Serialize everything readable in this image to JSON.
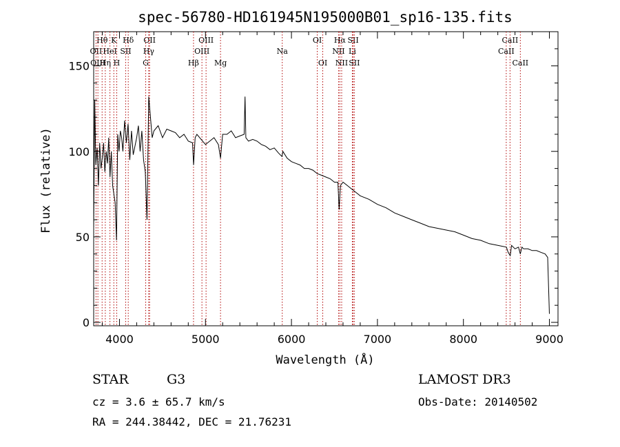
{
  "title": "spec-56780-HD161945N195000B01_sp16-135.fits",
  "chart_data": {
    "type": "line",
    "title": "spec-56780-HD161945N195000B01_sp16-135.fits",
    "xlabel": "Wavelength (Å)",
    "ylabel": "Flux (relative)",
    "xlim": [
      3700,
      9100
    ],
    "ylim": [
      -2,
      170
    ],
    "x_ticks": [
      4000,
      5000,
      6000,
      7000,
      8000,
      9000
    ],
    "y_ticks": [
      0,
      50,
      100,
      150
    ],
    "x_tick_labels": [
      "4000",
      "5000",
      "6000",
      "7000",
      "8000",
      "9000"
    ],
    "y_tick_labels": [
      "0",
      "50",
      "100",
      "150"
    ],
    "series": [
      {
        "name": "spectrum",
        "x": [
          3700,
          3712,
          3725,
          3740,
          3755,
          3770,
          3785,
          3800,
          3815,
          3830,
          3845,
          3860,
          3875,
          3890,
          3905,
          3920,
          3935,
          3950,
          3965,
          3980,
          3995,
          4010,
          4025,
          4040,
          4060,
          4080,
          4100,
          4120,
          4140,
          4160,
          4180,
          4200,
          4220,
          4240,
          4260,
          4280,
          4300,
          4320,
          4340,
          4360,
          4380,
          4400,
          4450,
          4500,
          4550,
          4600,
          4650,
          4700,
          4750,
          4800,
          4850,
          4862,
          4880,
          4900,
          4950,
          5000,
          5050,
          5100,
          5150,
          5175,
          5200,
          5250,
          5300,
          5350,
          5400,
          5450,
          5460,
          5470,
          5500,
          5550,
          5600,
          5650,
          5700,
          5750,
          5800,
          5850,
          5890,
          5900,
          5950,
          6000,
          6050,
          6100,
          6150,
          6200,
          6250,
          6300,
          6350,
          6400,
          6450,
          6500,
          6540,
          6555,
          6563,
          6570,
          6600,
          6650,
          6700,
          6750,
          6800,
          6900,
          7000,
          7100,
          7200,
          7300,
          7400,
          7500,
          7600,
          7700,
          7800,
          7900,
          8000,
          8100,
          8200,
          8300,
          8400,
          8500,
          8520,
          8545,
          8560,
          8600,
          8640,
          8662,
          8680,
          8700,
          8750,
          8800,
          8850,
          8900,
          8950,
          8980,
          9000
        ],
        "y": [
          55,
          130,
          92,
          102,
          80,
          105,
          90,
          96,
          105,
          88,
          100,
          93,
          108,
          85,
          100,
          80,
          75,
          70,
          48,
          110,
          100,
          112,
          108,
          100,
          118,
          105,
          116,
          95,
          112,
          98,
          103,
          108,
          115,
          100,
          112,
          95,
          88,
          60,
          132,
          120,
          108,
          112,
          115,
          108,
          113,
          112,
          111,
          108,
          110,
          106,
          105,
          92,
          108,
          110,
          107,
          104,
          106,
          108,
          104,
          96,
          110,
          110,
          112,
          108,
          109,
          110,
          132,
          108,
          106,
          107,
          106,
          104,
          103,
          101,
          102,
          99,
          97,
          100,
          96,
          94,
          93,
          92,
          90,
          90,
          89,
          87,
          86,
          85,
          84,
          82,
          82,
          66,
          74,
          80,
          82,
          80,
          78,
          76,
          74,
          72,
          69,
          67,
          64,
          62,
          60,
          58,
          56,
          55,
          54,
          53,
          51,
          49,
          48,
          46,
          45,
          44,
          41,
          39,
          45,
          43,
          44,
          40,
          44,
          43,
          43,
          42,
          42,
          41,
          40,
          38,
          5
        ]
      }
    ],
    "line_markers": [
      {
        "label": "Hθ",
        "x": 3798,
        "row": 1
      },
      {
        "label": "K",
        "x": 3934,
        "row": 1
      },
      {
        "label": "Hδ",
        "x": 4102,
        "row": 1
      },
      {
        "label": "OII",
        "x": 4350,
        "row": 1
      },
      {
        "label": "OIII",
        "x": 5007,
        "row": 1
      },
      {
        "label": "OI",
        "x": 6300,
        "row": 1
      },
      {
        "label": "Hα",
        "x": 6563,
        "row": 1
      },
      {
        "label": "SII",
        "x": 6717,
        "row": 1
      },
      {
        "label": "CaII",
        "x": 8542,
        "row": 1
      },
      {
        "label": "OII",
        "x": 3727,
        "row": 2
      },
      {
        "label": "HeI",
        "x": 3889,
        "row": 2
      },
      {
        "label": "SII",
        "x": 4072,
        "row": 2
      },
      {
        "label": "Hγ",
        "x": 4340,
        "row": 2
      },
      {
        "label": "OIII",
        "x": 4959,
        "row": 2
      },
      {
        "label": "Na",
        "x": 5893,
        "row": 2
      },
      {
        "label": "NII",
        "x": 6548,
        "row": 2
      },
      {
        "label": "Li",
        "x": 6708,
        "row": 2
      },
      {
        "label": "CaII",
        "x": 8498,
        "row": 2
      },
      {
        "label": "OIII",
        "x": 3749,
        "row": 3
      },
      {
        "label": "Hη",
        "x": 3835,
        "row": 3
      },
      {
        "label": "H",
        "x": 3968,
        "row": 3
      },
      {
        "label": "G",
        "x": 4305,
        "row": 3
      },
      {
        "label": "Hβ",
        "x": 4861,
        "row": 3
      },
      {
        "label": "Mg",
        "x": 5175,
        "row": 3
      },
      {
        "label": "OI",
        "x": 6364,
        "row": 3
      },
      {
        "label": "NII",
        "x": 6584,
        "row": 3
      },
      {
        "label": "SII",
        "x": 6731,
        "row": 3
      },
      {
        "label": "CaII",
        "x": 8662,
        "row": 3
      }
    ]
  },
  "info": {
    "object_class": "STAR",
    "subclass": "G3",
    "survey": "LAMOST DR3",
    "redshift": "cz = 3.6 ± 65.7 km/s",
    "obs_date": "Obs-Date: 20140502",
    "coords": "RA = 244.38442, DEC =  21.76231"
  }
}
